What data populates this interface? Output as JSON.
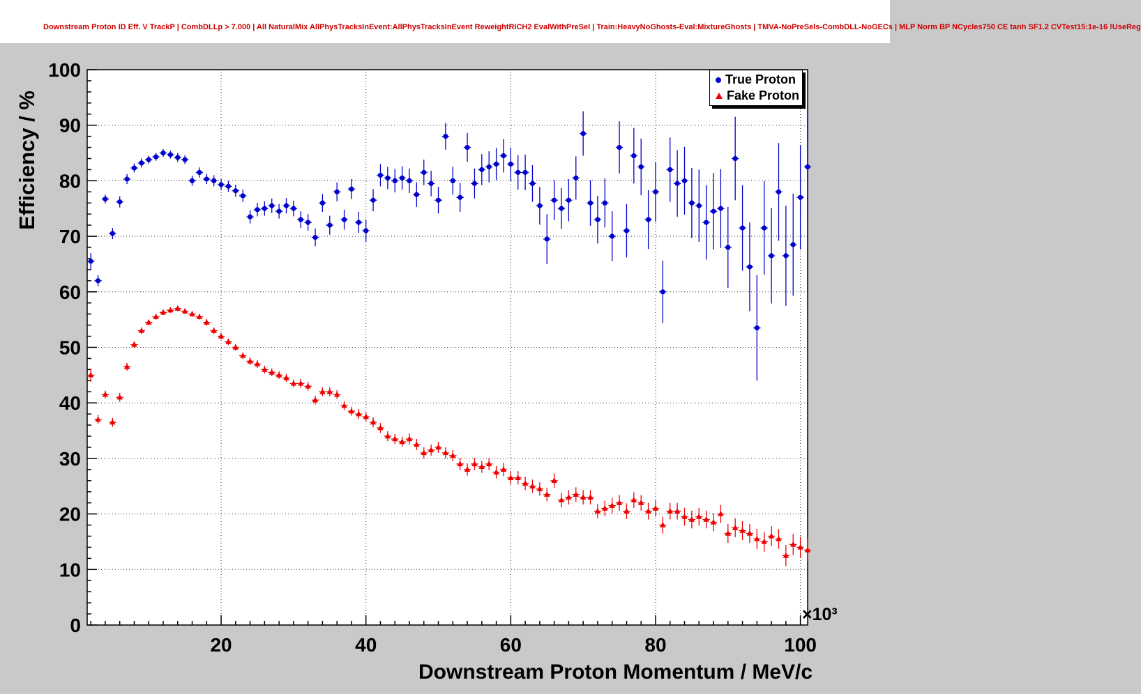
{
  "title": "Downstream Proton ID Eff. V TrackP | CombDLLp > 7.000 | All NaturalMix AllPhysTracksInEvent:AllPhysTracksInEvent ReweightRICH2 EvalWithPreSel | Train:HeavyNoGhosts-Eval:MixtureGhosts | TMVA-NoPreSels-CombDLL-NoGECs | MLP Norm BP NCycles750 CE tanh SF1.2 CVTest15:1e-16 !UseReg",
  "colors": {
    "title_text": "#cc0000",
    "canvas_bg": "#c9c9c9",
    "plot_bg": "#ffffff",
    "grid": "#333333",
    "true_proton": "#0000cc",
    "fake_proton": "#ee0000"
  },
  "chart_data": {
    "type": "scatter",
    "title": "",
    "xlabel": "Downstream Proton Momentum / MeV/c",
    "ylabel": "Efficiency / %",
    "x_axis_multiplier": "×10³",
    "xlim": [
      1.5,
      101
    ],
    "ylim": [
      0,
      100
    ],
    "xticks": [
      20,
      40,
      60,
      80,
      100
    ],
    "yticks": [
      0,
      10,
      20,
      30,
      40,
      50,
      60,
      70,
      80,
      90,
      100
    ],
    "x_minor_step": 2,
    "y_minor_step": 2,
    "grid": true,
    "legend_position": "top-right",
    "xerr": 0.5,
    "x": [
      2,
      3,
      4,
      5,
      6,
      7,
      8,
      9,
      10,
      11,
      12,
      13,
      14,
      15,
      16,
      17,
      18,
      19,
      20,
      21,
      22,
      23,
      24,
      25,
      26,
      27,
      28,
      29,
      30,
      31,
      32,
      33,
      34,
      35,
      36,
      37,
      38,
      39,
      40,
      41,
      42,
      43,
      44,
      45,
      46,
      47,
      48,
      49,
      50,
      51,
      52,
      53,
      54,
      55,
      56,
      57,
      58,
      59,
      60,
      61,
      62,
      63,
      64,
      65,
      66,
      67,
      68,
      69,
      70,
      71,
      72,
      73,
      74,
      75,
      76,
      77,
      78,
      79,
      80,
      81,
      82,
      83,
      84,
      85,
      86,
      87,
      88,
      89,
      90,
      91,
      92,
      93,
      94,
      95,
      96,
      97,
      98,
      99,
      100,
      101
    ],
    "series": [
      {
        "name": "True Proton",
        "color": "#0000cc",
        "marker": "circle",
        "y": [
          65.5,
          62,
          76.7,
          70.5,
          76.2,
          80.3,
          82.3,
          83.2,
          83.8,
          84.3,
          85,
          84.7,
          84.2,
          83.8,
          80,
          81.5,
          80.3,
          80,
          79.3,
          79,
          78.2,
          77.3,
          73.5,
          74.8,
          75,
          75.5,
          74.5,
          75.5,
          75,
          73,
          72.5,
          69.8,
          76,
          72,
          78,
          73,
          78.5,
          72.5,
          71,
          76.5,
          81,
          80.5,
          80,
          80.5,
          80,
          77.5,
          81.5,
          79.5,
          76.5,
          88,
          80,
          77,
          86,
          79.5,
          82,
          82.5,
          83,
          84.5,
          83,
          81.5,
          81.5,
          79.5,
          75.5,
          69.5,
          76.5,
          75,
          76.5,
          80.5,
          88.5,
          76,
          73,
          76,
          70,
          86,
          71,
          84.5,
          82.5,
          73,
          78,
          60,
          82,
          79.5,
          80,
          76,
          75.5,
          72.5,
          74.5,
          75,
          68,
          84,
          71.5,
          64.5,
          53.5,
          71.5,
          66.5,
          78,
          66.5,
          68.5,
          77,
          82.5
        ],
        "yerr": [
          1.5,
          1,
          0.8,
          1,
          1,
          0.9,
          0.8,
          0.8,
          0.7,
          0.7,
          0.7,
          0.7,
          0.8,
          0.8,
          0.9,
          0.9,
          0.9,
          1,
          1,
          1,
          1.1,
          1.1,
          1.2,
          1.2,
          1.3,
          1.3,
          1.3,
          1.4,
          1.4,
          1.5,
          1.5,
          1.6,
          1.6,
          1.7,
          1.7,
          1.8,
          1.8,
          1.9,
          2,
          2,
          2,
          2,
          2.1,
          2.1,
          2.2,
          2.2,
          2.3,
          2.3,
          2.4,
          2.4,
          2.5,
          2.6,
          2.6,
          2.7,
          2.8,
          2.8,
          2.9,
          3,
          3,
          3.1,
          3.2,
          3.3,
          3.4,
          4.5,
          3.6,
          3.7,
          3.8,
          3.9,
          4,
          4.1,
          4.3,
          4.4,
          4.5,
          4.7,
          4.8,
          5,
          5.1,
          5.3,
          5.4,
          5.6,
          5.8,
          6,
          6.1,
          6.3,
          6.5,
          6.7,
          6.9,
          7.1,
          7.3,
          7.5,
          7.7,
          8,
          9.5,
          8.4,
          8.6,
          8.8,
          9,
          9.2,
          9.4,
          9.6
        ]
      },
      {
        "name": "Fake Proton",
        "color": "#ee0000",
        "marker": "triangle",
        "y": [
          45,
          37,
          41.5,
          36.5,
          41,
          46.5,
          50.5,
          53,
          54.5,
          55.5,
          56.3,
          56.7,
          57,
          56.5,
          56,
          55.5,
          54.5,
          53,
          52,
          51,
          50,
          48.5,
          47.5,
          47,
          46,
          45.5,
          45,
          44.5,
          43.5,
          43.5,
          43,
          40.5,
          42,
          42,
          41.5,
          39.5,
          38.5,
          38,
          37.5,
          36.5,
          35.5,
          34,
          33.5,
          33,
          33.5,
          32.5,
          31,
          31.5,
          32,
          31,
          30.5,
          29,
          28,
          29,
          28.5,
          29,
          27.5,
          28,
          26.5,
          26.5,
          25.5,
          25,
          24.5,
          23.5,
          26,
          22.5,
          23,
          23.5,
          23,
          23,
          20.5,
          21,
          21.5,
          22,
          20.5,
          22.5,
          22,
          20.5,
          21,
          18,
          20.5,
          20.5,
          19.5,
          19,
          19.5,
          19,
          18.5,
          20,
          16.5,
          17.5,
          17,
          16.5,
          15.5,
          15,
          16,
          15.5,
          12.5,
          14.5,
          14,
          13.5
        ],
        "yerr": [
          1.2,
          0.8,
          0.7,
          0.8,
          0.8,
          0.7,
          0.6,
          0.6,
          0.5,
          0.5,
          0.5,
          0.5,
          0.5,
          0.5,
          0.5,
          0.5,
          0.6,
          0.6,
          0.6,
          0.6,
          0.6,
          0.6,
          0.7,
          0.7,
          0.7,
          0.7,
          0.7,
          0.7,
          0.7,
          0.8,
          0.8,
          0.8,
          0.8,
          0.8,
          0.8,
          0.8,
          0.8,
          0.9,
          0.9,
          0.9,
          0.9,
          0.9,
          0.9,
          0.9,
          1,
          1,
          1,
          1,
          1,
          1,
          1,
          1.1,
          1.1,
          1.1,
          1.1,
          1.1,
          1.1,
          1.2,
          1.2,
          1.2,
          1.2,
          1.2,
          1.2,
          1.2,
          1.3,
          1.3,
          1.3,
          1.3,
          1.3,
          1.3,
          1.3,
          1.4,
          1.4,
          1.4,
          1.4,
          1.4,
          1.4,
          1.5,
          1.5,
          1.5,
          1.5,
          1.5,
          1.6,
          1.6,
          1.6,
          1.6,
          1.6,
          1.6,
          1.7,
          1.7,
          1.7,
          1.7,
          1.8,
          1.8,
          1.8,
          1.8,
          1.9,
          1.9,
          1.9,
          2
        ]
      }
    ]
  }
}
